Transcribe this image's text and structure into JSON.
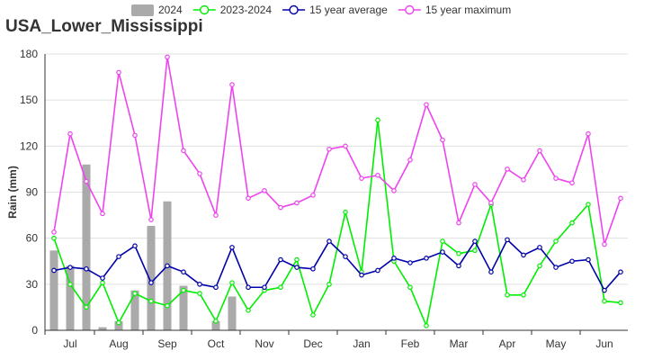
{
  "chart_data": {
    "type": "bar+line",
    "title": "USA_Lower_Mississippi",
    "ylabel": "Rain (mm)",
    "ylim": [
      0,
      180
    ],
    "yticks": [
      0,
      30,
      60,
      90,
      120,
      150,
      180
    ],
    "months": [
      "Jul",
      "Aug",
      "Sep",
      "Oct",
      "Nov",
      "Dec",
      "Jan",
      "Feb",
      "Mar",
      "Apr",
      "May",
      "Jun"
    ],
    "grid": "horizontal",
    "legend_position": "top-center",
    "legend": [
      {
        "name": "2024",
        "kind": "bar",
        "color": "#aaaaaa"
      },
      {
        "name": "2023-2024",
        "kind": "line",
        "color": "#00ee00"
      },
      {
        "name": "15 year average",
        "kind": "line",
        "color": "#0000aa"
      },
      {
        "name": "15 year maximum",
        "kind": "line",
        "color": "#ee44ee"
      }
    ],
    "bars_2024": [
      52,
      42,
      108,
      2,
      6,
      26,
      68,
      84,
      29,
      0,
      6,
      22
    ],
    "series": [
      {
        "name": "2023-2024",
        "color": "#00ee00",
        "values": [
          60,
          30,
          15,
          31,
          5,
          24,
          19,
          16,
          26,
          24,
          6,
          31,
          13,
          26,
          28,
          46,
          10,
          30,
          77,
          38,
          137,
          45,
          28,
          3,
          58,
          50,
          52,
          82,
          23,
          23,
          42,
          58,
          70,
          82,
          19,
          18
        ]
      },
      {
        "name": "15 year average",
        "color": "#0000aa",
        "values": [
          39,
          41,
          40,
          34,
          48,
          55,
          31,
          42,
          38,
          30,
          28,
          54,
          28,
          28,
          46,
          41,
          40,
          58,
          48,
          36,
          39,
          47,
          44,
          47,
          51,
          42,
          58,
          38,
          59,
          49,
          54,
          41,
          45,
          46,
          26,
          38
        ]
      },
      {
        "name": "15 year maximum",
        "color": "#ee44ee",
        "values": [
          64,
          128,
          97,
          76,
          168,
          127,
          72,
          178,
          117,
          102,
          75,
          160,
          86,
          91,
          80,
          83,
          88,
          118,
          120,
          99,
          101,
          91,
          111,
          147,
          124,
          70,
          95,
          83,
          105,
          98,
          117,
          99,
          96,
          128,
          56,
          86
        ]
      }
    ]
  }
}
